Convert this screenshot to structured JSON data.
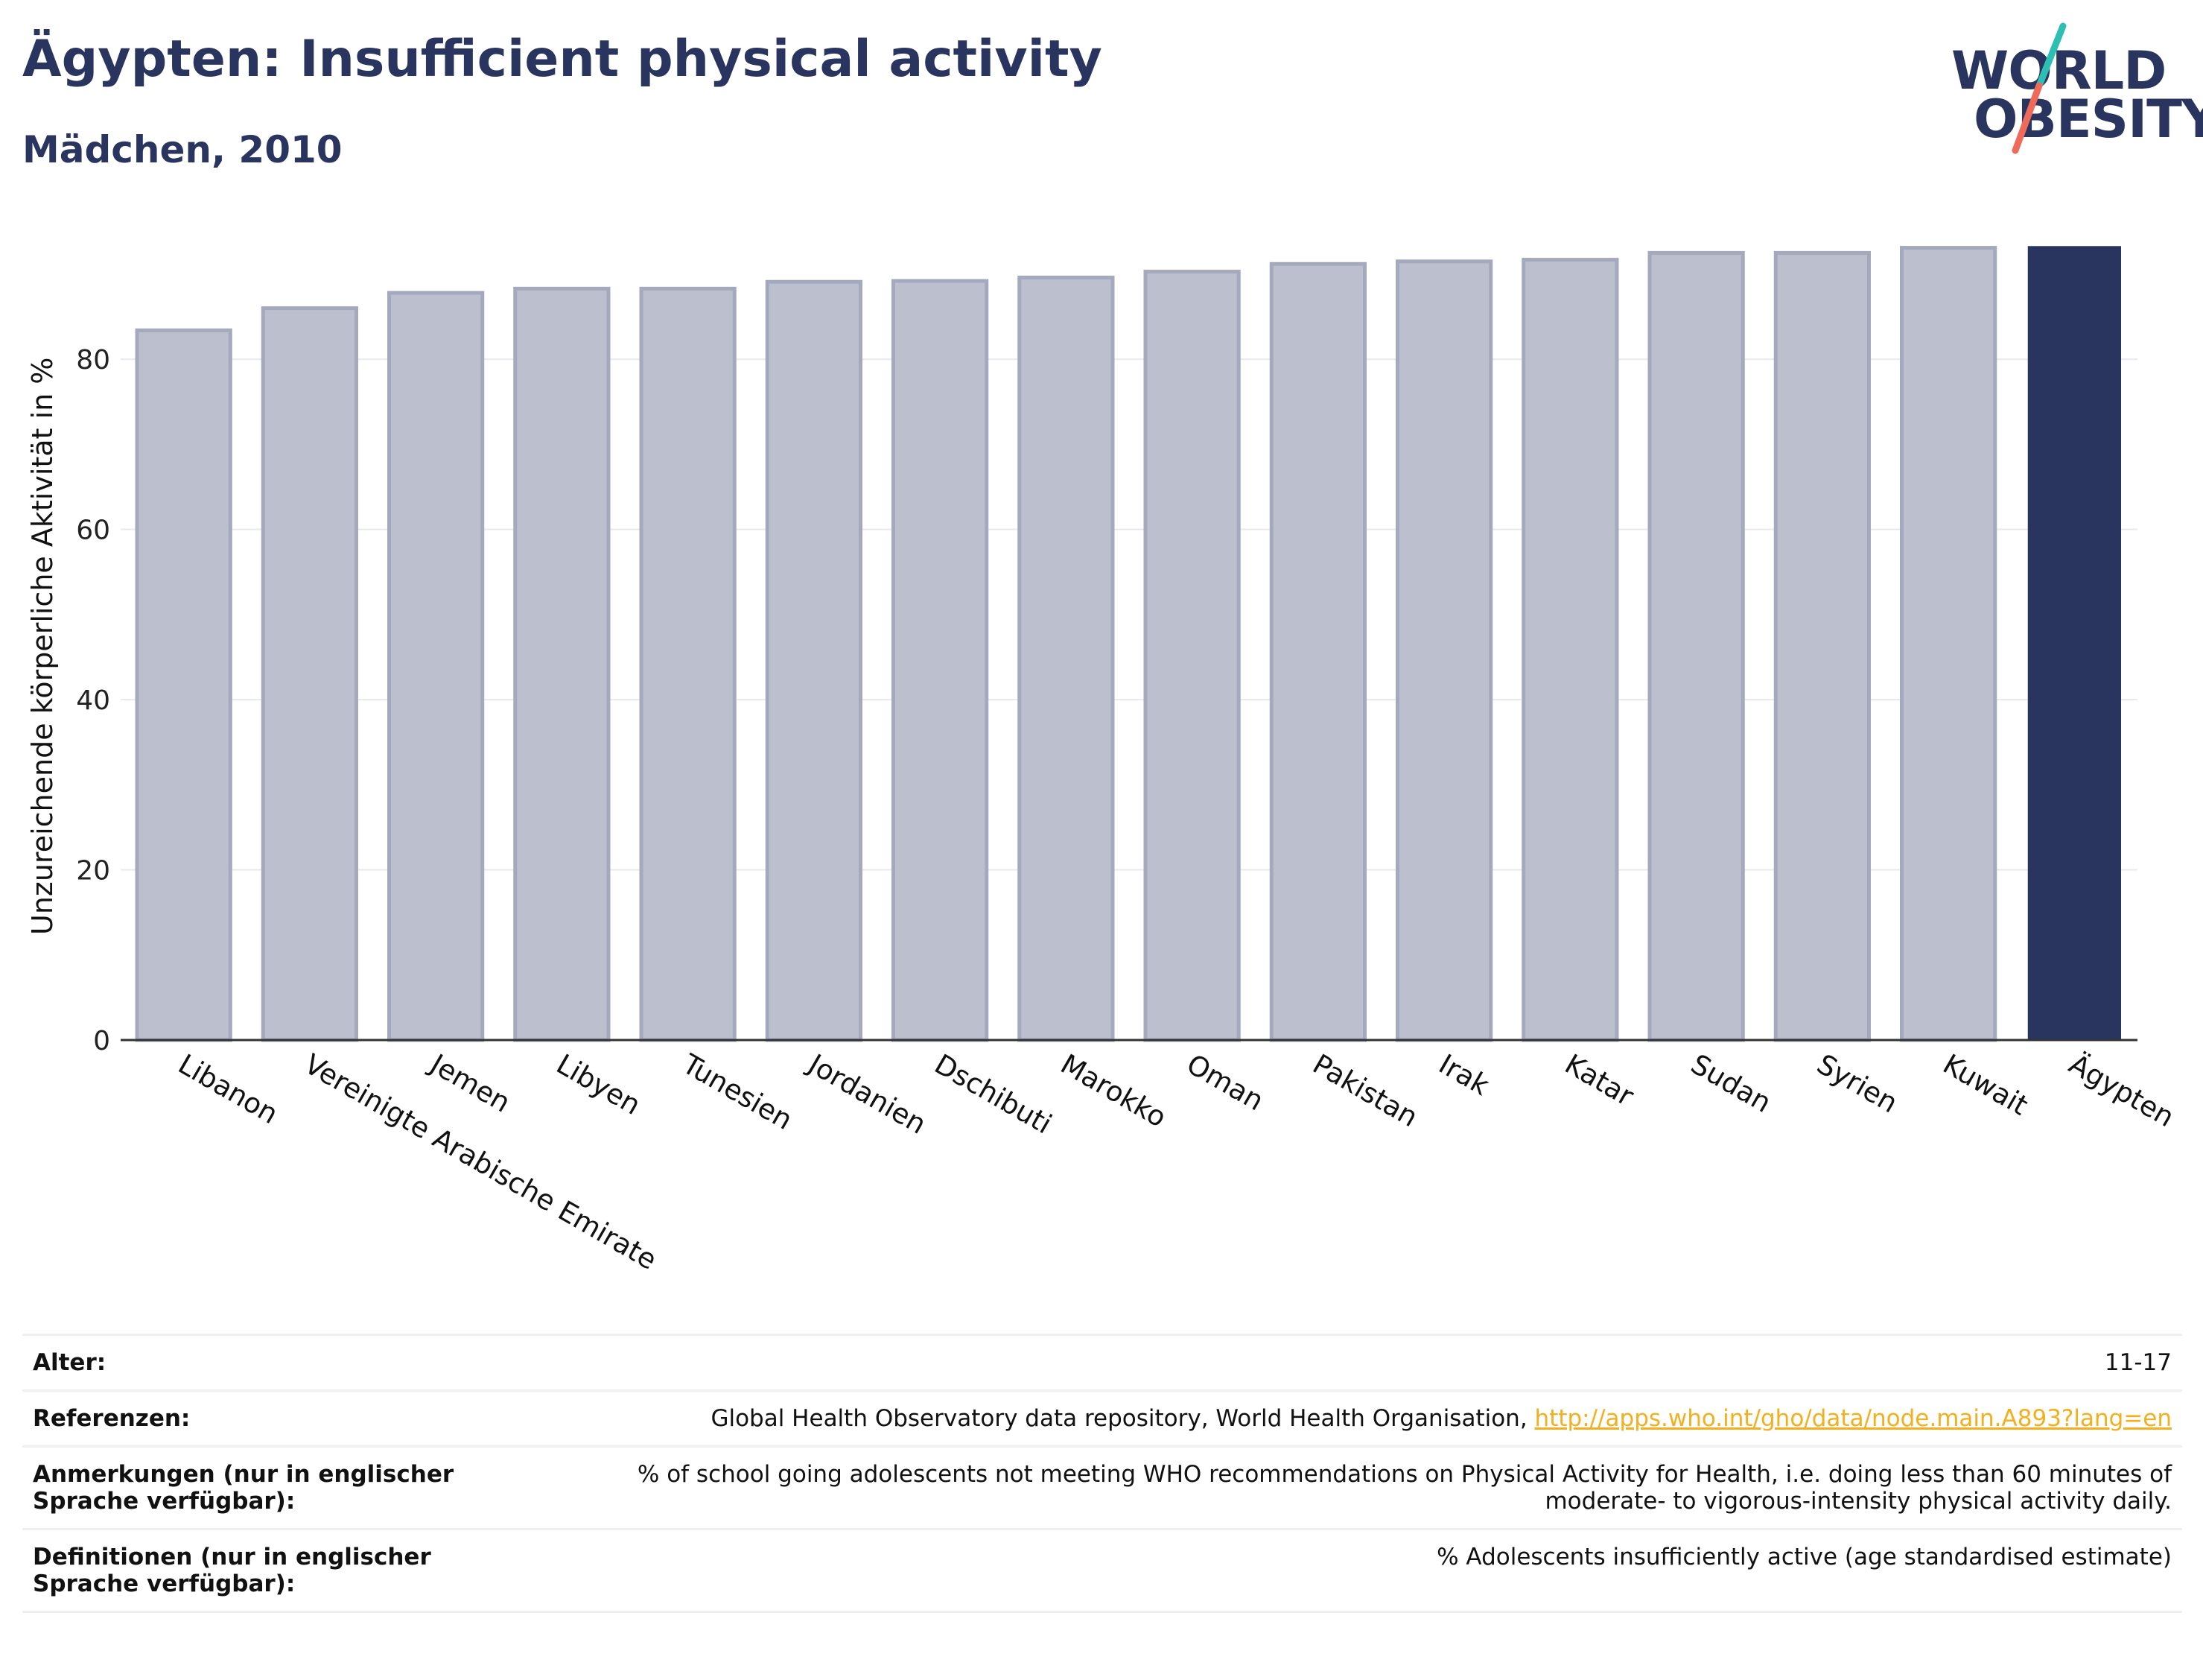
{
  "header": {
    "title": "Ägypten: Insufficient physical activity",
    "subtitle": "Mädchen, 2010"
  },
  "logo": {
    "line1": "WORLD",
    "line2": "OBESITY",
    "colors": {
      "text": "#2a355f",
      "slash_top": "#2ebfb4",
      "slash_bottom": "#ee6b5a"
    }
  },
  "colors": {
    "highlight_bar": "#2a355f",
    "other_bar_fill": "#bcc0ce",
    "other_bar_outline": "#a4a9bd",
    "link": "#f2b01e"
  },
  "chart_data": {
    "type": "bar",
    "title": "Ägypten: Insufficient physical activity",
    "subtitle": "Mädchen, 2010",
    "ylabel": "Unzureichende körperliche Aktivität in %",
    "xlabel": "",
    "ylim": [
      0,
      93.5
    ],
    "yticks": [
      0,
      20,
      40,
      60,
      80
    ],
    "grid": true,
    "categories": [
      "Libanon",
      "Vereinigte Arabische Emirate",
      "Jemen",
      "Libyen",
      "Tunesien",
      "Jordanien",
      "Dschibuti",
      "Marokko",
      "Oman",
      "Pakistan",
      "Irak",
      "Katar",
      "Sudan",
      "Syrien",
      "Kuwait",
      "Ägypten"
    ],
    "values": [
      83.4,
      86.0,
      87.8,
      88.3,
      88.3,
      89.1,
      89.2,
      89.6,
      90.3,
      91.2,
      91.5,
      91.7,
      92.5,
      92.5,
      93.1,
      93.3
    ],
    "highlight": "Ägypten"
  },
  "meta": {
    "rows": [
      {
        "key": "Alter:",
        "value": "11-17"
      },
      {
        "key": "Referenzen:",
        "value": "Global Health Observatory data repository, World Health Organisation, ",
        "link": "http://apps.who.int/gho/data/node.main.A893?lang=en"
      },
      {
        "key": "Anmerkungen (nur in englischer Sprache verfügbar):",
        "value": "% of school going adolescents not meeting WHO recommendations on Physical Activity for Health, i.e. doing less than 60 minutes of moderate- to vigorous-intensity physical activity daily."
      },
      {
        "key": "Definitionen (nur in englischer Sprache verfügbar):",
        "value": "% Adolescents insufficiently active (age standardised estimate)"
      }
    ]
  }
}
